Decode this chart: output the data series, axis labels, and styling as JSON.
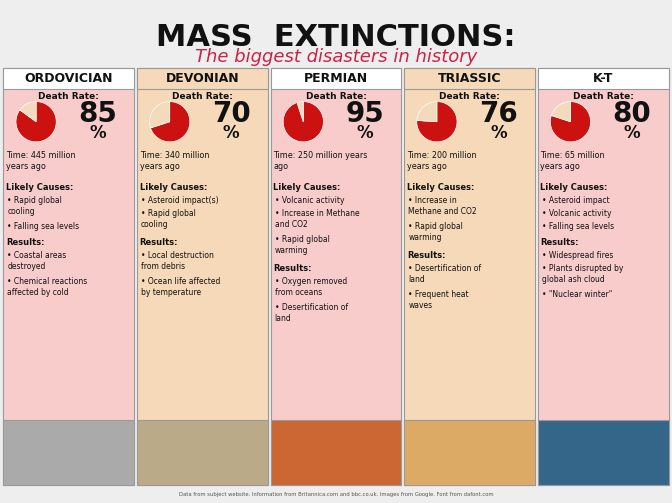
{
  "title": "MASS  EXTINCTIONS:",
  "subtitle": "The biggest disasters in history",
  "columns": [
    {
      "name": "ORDOVICIAN",
      "death_rate": 85,
      "time": "Time: 445 million\nyears ago",
      "causes": [
        "Rapid global\ncooling",
        "Falling sea levels"
      ],
      "results": [
        "Coastal areas\ndestroyed",
        "Chemical reactions\naffected by cold"
      ],
      "bg_color": "#f9cccc",
      "header_color": "#ffffff",
      "img_color": "#aaaaaa"
    },
    {
      "name": "DEVONIAN",
      "death_rate": 70,
      "time": "Time: 340 million\nyears ago",
      "causes": [
        "Asteroid impact(s)",
        "Rapid global\ncooling"
      ],
      "results": [
        "Local destruction\nfrom debris",
        "Ocean life affected\nby temperature"
      ],
      "bg_color": "#f5d9b8",
      "header_color": "#f5d9b8",
      "img_color": "#bbaa88"
    },
    {
      "name": "PERMIAN",
      "death_rate": 95,
      "time": "Time: 250 million years\nago",
      "causes": [
        "Volcanic activity",
        "Increase in Methane\nand CO2",
        "Rapid global\nwarming"
      ],
      "results": [
        "Oxygen removed\nfrom oceans",
        "Desertification of\nland"
      ],
      "bg_color": "#f9cccc",
      "header_color": "#ffffff",
      "img_color": "#cc6633"
    },
    {
      "name": "TRIASSIC",
      "death_rate": 76,
      "time": "Time: 200 million\nyears ago",
      "causes": [
        "Increase in\nMethane and CO2",
        "Rapid global\nwarming"
      ],
      "results": [
        "Desertification of\nland",
        "Frequent heat\nwaves"
      ],
      "bg_color": "#f5d9b8",
      "header_color": "#f5d9b8",
      "img_color": "#ddaa66"
    },
    {
      "name": "K-T",
      "death_rate": 80,
      "time": "Time: 65 million\nyears ago",
      "causes": [
        "Asteroid impact",
        "Volcanic activity",
        "Falling sea levels"
      ],
      "results": [
        "Widespread fires",
        "Plants disrupted by\nglobal ash cloud",
        "\"Nuclear winter\""
      ],
      "bg_color": "#f9cccc",
      "header_color": "#ffffff",
      "img_color": "#336688"
    }
  ],
  "pie_alive_color": "#f2daba",
  "pie_dead_color": "#cc1111",
  "bg_color": "#eeeeee",
  "title_color": "#111111",
  "subtitle_color": "#cc2244",
  "text_color": "#111111"
}
